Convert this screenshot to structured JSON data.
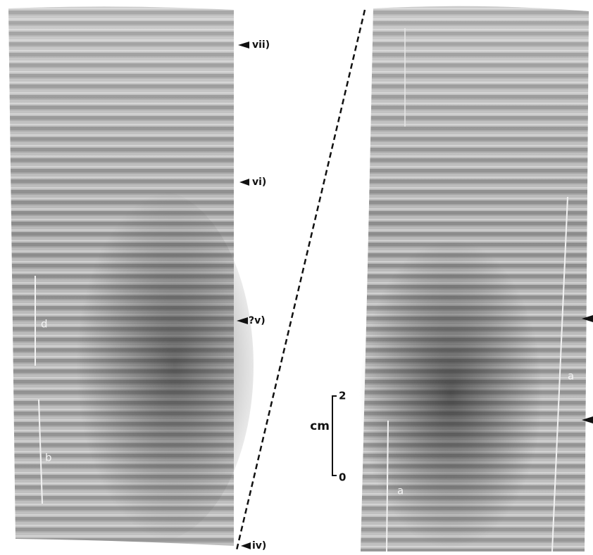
{
  "left_core": {
    "markers": [
      "vii)",
      "vi)",
      "?v)",
      "iv)"
    ],
    "segments": [
      "d",
      "b"
    ]
  },
  "right_core": {
    "segments": [
      "a",
      "a"
    ]
  },
  "scale": {
    "unit": "cm",
    "top": 2,
    "bottom": 0
  }
}
